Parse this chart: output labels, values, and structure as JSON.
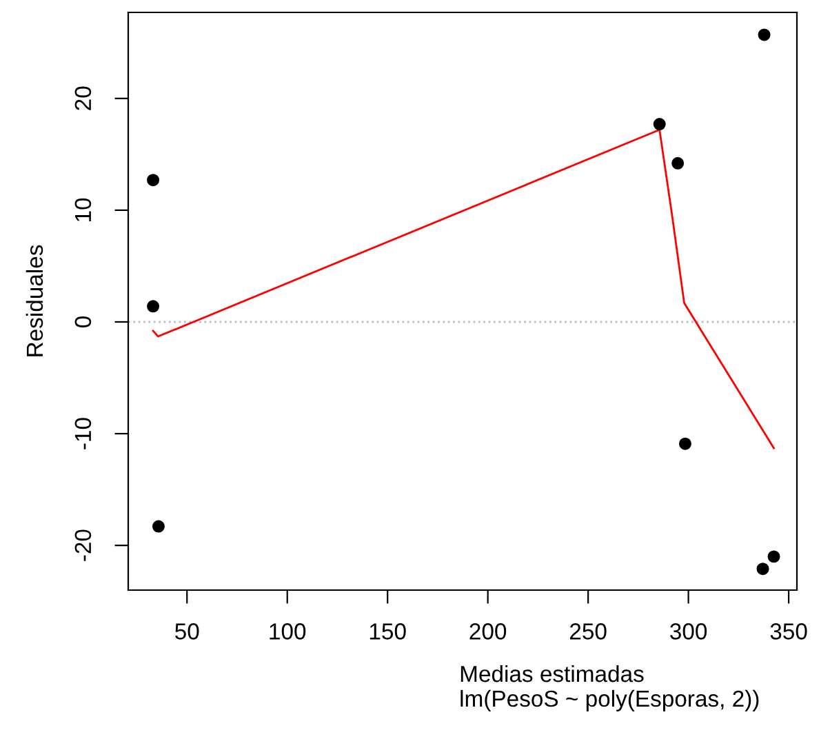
{
  "chart_data": {
    "type": "scatter",
    "xlabel": "Medias estimadas\nlm(PesoS ~ poly(Esporas, 2))",
    "ylabel": "Residuales",
    "xlim": [
      20.7,
      354.1
    ],
    "ylim": [
      -24.0,
      27.7
    ],
    "xticks": [
      50,
      100,
      150,
      200,
      250,
      300,
      350
    ],
    "yticks": [
      -20,
      -10,
      0,
      10,
      20
    ],
    "grid": false,
    "legend": false,
    "series": [
      {
        "color": "#000000",
        "marker": "circle",
        "x": [
          33.1,
          33.1,
          35.8,
          285.6,
          294.7,
          298.4,
          337.8,
          337.1,
          342.6
        ],
        "values": [
          12.7,
          1.4,
          -18.3,
          17.7,
          14.2,
          -10.9,
          25.7,
          -22.1,
          -21.0
        ]
      },
      {
        "type": "line",
        "color": "#ff0000",
        "line_style": "solid",
        "x": [
          33.1,
          35.6,
          285.6,
          291.9,
          297.9,
          342.6
        ],
        "values": [
          -0.8,
          -1.3,
          17.2,
          9.5,
          1.7,
          -11.3
        ]
      }
    ],
    "ref_lines": [
      {
        "axis": "y",
        "value": 0,
        "color": "#bebebe",
        "line_style": "dotted"
      }
    ]
  }
}
